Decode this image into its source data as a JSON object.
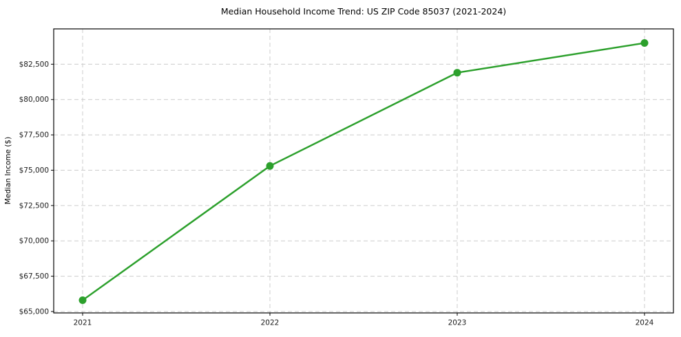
{
  "chart_data": {
    "type": "line",
    "title": "Median Household Income Trend: US ZIP Code 85037 (2021-2024)",
    "xlabel": "",
    "ylabel": "Median Income ($)",
    "x": [
      2021,
      2022,
      2023,
      2024
    ],
    "xtick_labels": [
      "2021",
      "2022",
      "2023",
      "2024"
    ],
    "series": [
      {
        "name": "Median Household Income",
        "values": [
          65800,
          75300,
          81900,
          84000
        ]
      }
    ],
    "yticks": [
      65000,
      67500,
      70000,
      72500,
      75000,
      77500,
      80000,
      82500
    ],
    "ytick_labels": [
      "$65,000",
      "$67,500",
      "$70,000",
      "$72,500",
      "$75,000",
      "$77,500",
      "$80,000",
      "$82,500"
    ],
    "ylim": [
      64900,
      85000
    ],
    "grid": "on",
    "grid_style": "dashed",
    "legend": "none",
    "line_color": "#2ca02c",
    "grid_color": "#cccccc",
    "axis_color": "#000000",
    "marker": "circle"
  }
}
